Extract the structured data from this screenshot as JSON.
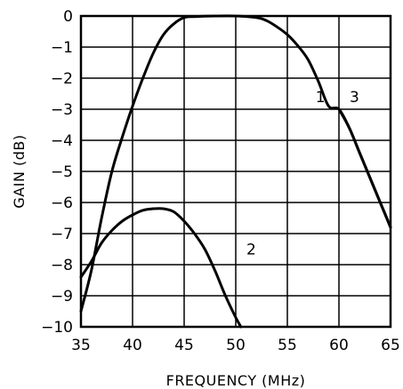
{
  "chart_data": {
    "type": "line",
    "xlabel": "FREQUENCY (MHz)",
    "ylabel": "GAIN (dB)",
    "xlim": [
      35,
      65
    ],
    "ylim": [
      -10,
      0
    ],
    "xticks": [
      35,
      40,
      45,
      50,
      55,
      60,
      65
    ],
    "yticks": [
      0,
      -1,
      -2,
      -3,
      -4,
      -5,
      -6,
      -7,
      -8,
      -9,
      -10
    ],
    "grid": true,
    "series": [
      {
        "name": "1",
        "x": [
          35,
          36,
          37,
          38,
          39,
          40,
          41,
          42,
          43,
          44,
          45,
          46,
          48,
          50,
          52,
          53,
          54,
          55,
          56,
          57,
          58,
          59,
          60,
          61,
          62,
          63,
          64,
          65
        ],
        "y": [
          -9.5,
          -8.2,
          -6.5,
          -5.0,
          -3.9,
          -2.9,
          -2.0,
          -1.2,
          -0.6,
          -0.25,
          -0.05,
          -0.02,
          0,
          0,
          -0.05,
          -0.15,
          -0.35,
          -0.6,
          -0.95,
          -1.4,
          -2.1,
          -2.9,
          -3.0,
          -3.6,
          -4.4,
          -5.2,
          -6.0,
          -6.8
        ]
      },
      {
        "name": "2",
        "x": [
          35,
          36,
          37,
          38,
          39,
          40,
          41,
          42,
          43,
          44,
          45,
          46,
          47,
          48,
          49,
          50,
          50.5
        ],
        "y": [
          -8.4,
          -7.9,
          -7.3,
          -6.9,
          -6.6,
          -6.4,
          -6.25,
          -6.2,
          -6.2,
          -6.3,
          -6.6,
          -7.0,
          -7.5,
          -8.2,
          -9.0,
          -9.7,
          -10
        ]
      },
      {
        "name": "3",
        "x": [
          60,
          61,
          62,
          63,
          64,
          65
        ],
        "y": [
          -3.0,
          -3.6,
          -4.4,
          -5.2,
          -6.0,
          -6.8
        ]
      }
    ],
    "annotations": [
      {
        "text": "1",
        "x": 58.2,
        "y": -2.6
      },
      {
        "text": "3",
        "x": 61.5,
        "y": -2.6
      },
      {
        "text": "2",
        "x": 51.5,
        "y": -7.5
      }
    ]
  }
}
